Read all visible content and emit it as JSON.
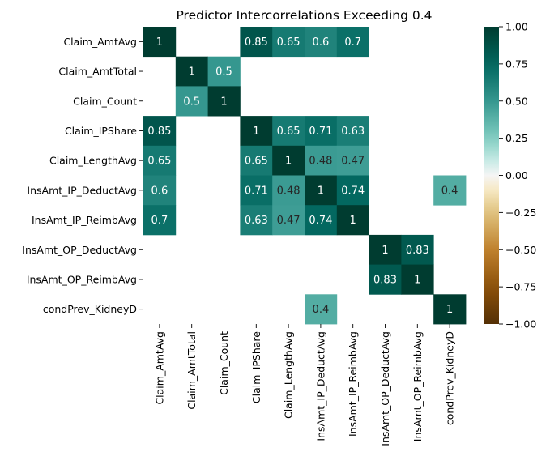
{
  "chart_data": {
    "type": "heatmap",
    "title": "Predictor Intercorrelations Exceeding 0.4",
    "xlabel": "",
    "ylabel": "",
    "variables": [
      "Claim_AmtAvg",
      "Claim_AmtTotal",
      "Claim_Count",
      "Claim_IPShare",
      "Claim_LengthAvg",
      "InsAmt_IP_DeductAvg",
      "InsAmt_IP_ReimbAvg",
      "InsAmt_OP_DeductAvg",
      "InsAmt_OP_ReimbAvg",
      "condPrev_KidneyD"
    ],
    "matrix": [
      [
        1,
        null,
        null,
        0.85,
        0.65,
        0.6,
        0.7,
        null,
        null,
        null
      ],
      [
        null,
        1,
        0.5,
        null,
        null,
        null,
        null,
        null,
        null,
        null
      ],
      [
        null,
        0.5,
        1,
        null,
        null,
        null,
        null,
        null,
        null,
        null
      ],
      [
        0.85,
        null,
        null,
        1,
        0.65,
        0.71,
        0.63,
        null,
        null,
        null
      ],
      [
        0.65,
        null,
        null,
        0.65,
        1,
        0.48,
        0.47,
        null,
        null,
        null
      ],
      [
        0.6,
        null,
        null,
        0.71,
        0.48,
        1,
        0.74,
        null,
        null,
        0.4
      ],
      [
        0.7,
        null,
        null,
        0.63,
        0.47,
        0.74,
        1,
        null,
        null,
        null
      ],
      [
        null,
        null,
        null,
        null,
        null,
        null,
        null,
        1,
        0.83,
        null
      ],
      [
        null,
        null,
        null,
        null,
        null,
        null,
        null,
        0.83,
        1,
        null
      ],
      [
        null,
        null,
        null,
        null,
        null,
        0.4,
        null,
        null,
        null,
        1
      ]
    ],
    "colorbar": {
      "min": -1,
      "max": 1,
      "ticks": [
        1.0,
        0.75,
        0.5,
        0.25,
        0.0,
        -0.25,
        -0.5,
        -0.75,
        -1.0
      ],
      "tick_labels": [
        "1.00",
        "0.75",
        "0.50",
        "0.25",
        "0.00",
        "−0.25",
        "−0.50",
        "−0.75",
        "−1.00"
      ],
      "colormap": "BrBG"
    }
  }
}
